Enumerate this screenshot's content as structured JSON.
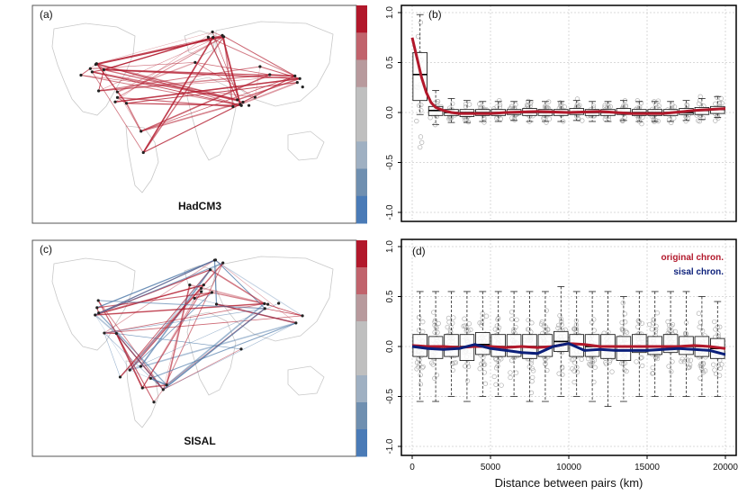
{
  "colors": {
    "red": "#b2182b",
    "navy": "#0b1f7a",
    "link_pos": "#b2182b",
    "link_neg": "#4c78a8",
    "box": "#222222",
    "point": "#b0b0b0"
  },
  "colorbar": [
    "#b2182b",
    "#c1636c",
    "#b89a9d",
    "#bfbfbf",
    "#bfbfbf",
    "#9fb0c2",
    "#6f8fb0",
    "#4a7bb7"
  ],
  "panels": {
    "a": {
      "label": "(a)",
      "title": "HadCM3"
    },
    "b": {
      "label": "(b)"
    },
    "c": {
      "label": "(c)",
      "title": "SISAL"
    },
    "d": {
      "label": "(d)"
    }
  },
  "x_axis_label": "Distance between pairs (km)",
  "chart_data": [
    {
      "panel": "b",
      "type": "box",
      "xlim": [
        0,
        20000
      ],
      "ylim": [
        -1,
        1
      ],
      "xticks": [
        0,
        5000,
        10000,
        15000,
        20000
      ],
      "yticks": [
        -1.0,
        -0.5,
        0.0,
        0.5,
        1.0
      ],
      "ytick_labels": [
        "-1.0",
        "-0.5",
        "0.0",
        "0.5",
        "1.0"
      ],
      "grid": true,
      "bins_x": [
        0,
        1000,
        1500,
        2000,
        2500,
        3000,
        3500,
        4000,
        4500,
        5000,
        5500,
        6000,
        6500,
        7000,
        7500,
        8000,
        8500,
        9000,
        9500,
        10000,
        10500,
        11000,
        11500,
        12000,
        12500,
        13000,
        13500,
        14000,
        14500,
        15000,
        15500,
        16000,
        16500,
        17000,
        17500,
        18000,
        18500,
        19000,
        19500,
        20000
      ],
      "median": [
        0.38,
        0.1,
        0.03,
        0.01,
        0.0,
        0.0,
        0.0,
        0.0,
        0.0,
        0.0,
        0.0,
        0.0,
        0.0,
        0.0,
        0.0,
        0.0,
        0.0,
        0.0,
        0.0,
        0.0,
        0.0,
        0.0,
        0.0,
        0.0,
        0.0,
        0.0,
        0.0,
        0.0,
        0.0,
        0.0,
        0.0,
        0.0,
        0.0,
        0.0,
        0.0,
        0.0,
        0.0,
        0.0,
        0.0,
        0.0
      ],
      "q1": [
        0.22,
        0.02,
        -0.02,
        -0.03,
        -0.03,
        -0.03,
        -0.03,
        -0.03,
        -0.03,
        -0.03,
        -0.03,
        -0.03,
        -0.03,
        -0.03,
        -0.03,
        -0.03,
        -0.03,
        -0.03,
        -0.03,
        -0.03,
        -0.03,
        -0.03,
        -0.03,
        -0.03,
        -0.03,
        -0.03,
        -0.03,
        -0.03,
        -0.03,
        -0.03,
        -0.03,
        -0.03,
        -0.03,
        -0.03,
        -0.03,
        -0.03,
        -0.03,
        -0.03,
        -0.03,
        -0.03
      ],
      "q3": [
        0.6,
        0.18,
        0.07,
        0.04,
        0.04,
        0.04,
        0.04,
        0.04,
        0.04,
        0.04,
        0.04,
        0.04,
        0.04,
        0.04,
        0.04,
        0.04,
        0.04,
        0.04,
        0.04,
        0.04,
        0.04,
        0.04,
        0.04,
        0.04,
        0.04,
        0.04,
        0.04,
        0.04,
        0.04,
        0.04,
        0.04,
        0.04,
        0.04,
        0.04,
        0.04,
        0.04,
        0.04,
        0.04,
        0.04,
        0.04
      ],
      "box_positions": [
        500,
        1500,
        2500,
        3500,
        4500,
        5500,
        6500,
        7500,
        8500,
        9500,
        10500,
        11500,
        12500,
        13500,
        14500,
        15500,
        16500,
        17500,
        18500,
        19500
      ],
      "box_median": [
        0.38,
        0.02,
        0.0,
        0.0,
        0.0,
        0.0,
        0.0,
        0.0,
        0.0,
        0.0,
        0.0,
        0.0,
        0.0,
        0.0,
        0.0,
        0.0,
        0.0,
        0.0,
        0.02,
        0.03
      ],
      "box_q1": [
        0.12,
        -0.03,
        -0.03,
        -0.04,
        -0.03,
        -0.03,
        -0.02,
        -0.03,
        -0.03,
        -0.03,
        -0.02,
        -0.03,
        -0.03,
        -0.02,
        -0.03,
        -0.03,
        -0.03,
        -0.02,
        -0.02,
        -0.01
      ],
      "box_q3": [
        0.6,
        0.06,
        0.03,
        0.03,
        0.03,
        0.03,
        0.03,
        0.04,
        0.03,
        0.03,
        0.04,
        0.03,
        0.03,
        0.04,
        0.03,
        0.03,
        0.03,
        0.04,
        0.05,
        0.06
      ],
      "box_low": [
        -0.02,
        -0.12,
        -0.1,
        -0.1,
        -0.09,
        -0.09,
        -0.08,
        -0.09,
        -0.09,
        -0.09,
        -0.08,
        -0.09,
        -0.09,
        -0.08,
        -0.09,
        -0.09,
        -0.09,
        -0.08,
        -0.07,
        -0.05
      ],
      "box_high": [
        0.98,
        0.22,
        0.14,
        0.12,
        0.11,
        0.11,
        0.11,
        0.12,
        0.11,
        0.11,
        0.12,
        0.11,
        0.11,
        0.12,
        0.11,
        0.11,
        0.11,
        0.12,
        0.14,
        0.16
      ],
      "smooth_x": [
        0,
        300,
        600,
        900,
        1200,
        1500,
        2000,
        2500,
        3000,
        4000,
        5000,
        6000,
        8000,
        10000,
        12000,
        14000,
        16000,
        18000,
        20000
      ],
      "smooth_y": [
        0.75,
        0.55,
        0.35,
        0.2,
        0.1,
        0.05,
        0.02,
        0.0,
        -0.01,
        -0.01,
        -0.01,
        0.0,
        0.01,
        0.0,
        0.01,
        -0.01,
        -0.01,
        0.02,
        0.04
      ]
    },
    {
      "panel": "d",
      "type": "box",
      "xlim": [
        0,
        20000
      ],
      "ylim": [
        -1,
        1
      ],
      "xticks": [
        0,
        5000,
        10000,
        15000,
        20000
      ],
      "xtick_labels": [
        "0",
        "5000",
        "10000",
        "15000",
        "20000"
      ],
      "yticks": [
        -1.0,
        -0.5,
        0.0,
        0.5,
        1.0
      ],
      "ytick_labels": [
        "-1.0",
        "-0.5",
        "0.0",
        "0.5",
        "1.0"
      ],
      "grid": true,
      "legend": [
        "original chron.",
        "sisal chron."
      ],
      "legend_position": "top-right",
      "box_positions": [
        500,
        1500,
        2500,
        3500,
        4500,
        5500,
        6500,
        7500,
        8500,
        9500,
        10500,
        11500,
        12500,
        13500,
        14500,
        15500,
        16500,
        17500,
        18500,
        19500
      ],
      "box_median": [
        0.0,
        0.0,
        0.0,
        0.0,
        0.02,
        0.0,
        0.0,
        0.0,
        0.0,
        0.05,
        0.02,
        0.0,
        0.0,
        0.0,
        0.0,
        0.0,
        0.0,
        0.0,
        0.0,
        -0.02
      ],
      "box_q1": [
        -0.1,
        -0.12,
        -0.1,
        -0.14,
        -0.08,
        -0.1,
        -0.1,
        -0.12,
        -0.1,
        -0.05,
        -0.1,
        -0.1,
        -0.12,
        -0.14,
        -0.06,
        -0.08,
        -0.06,
        -0.08,
        -0.1,
        -0.12
      ],
      "box_q3": [
        0.12,
        0.1,
        0.12,
        0.12,
        0.14,
        0.12,
        0.12,
        0.12,
        0.12,
        0.15,
        0.12,
        0.12,
        0.12,
        0.1,
        0.12,
        0.1,
        0.12,
        0.1,
        0.1,
        0.08
      ],
      "box_low": [
        -0.55,
        -0.55,
        -0.5,
        -0.55,
        -0.5,
        -0.5,
        -0.5,
        -0.55,
        -0.55,
        -0.5,
        -0.5,
        -0.55,
        -0.6,
        -0.55,
        -0.5,
        -0.5,
        -0.5,
        -0.5,
        -0.5,
        -0.5
      ],
      "box_high": [
        0.55,
        0.55,
        0.55,
        0.55,
        0.55,
        0.55,
        0.55,
        0.55,
        0.55,
        0.6,
        0.55,
        0.55,
        0.55,
        0.5,
        0.55,
        0.55,
        0.55,
        0.55,
        0.5,
        0.45
      ],
      "series": [
        {
          "name": "original chron.",
          "x": [
            0,
            1000,
            2000,
            3000,
            4000,
            5000,
            6000,
            7000,
            8000,
            9000,
            10000,
            11000,
            12000,
            13000,
            14000,
            15000,
            16000,
            17000,
            18000,
            19000,
            20000
          ],
          "y": [
            0.01,
            0.0,
            0.0,
            -0.01,
            0.0,
            0.0,
            -0.01,
            0.0,
            -0.01,
            0.0,
            0.03,
            0.02,
            0.0,
            0.0,
            0.0,
            0.0,
            0.0,
            0.0,
            0.01,
            0.0,
            -0.02
          ]
        },
        {
          "name": "sisal chron.",
          "x": [
            0,
            1000,
            2000,
            3000,
            4000,
            5000,
            6000,
            7000,
            8000,
            9000,
            10000,
            11000,
            12000,
            13000,
            14000,
            15000,
            16000,
            17000,
            18000,
            19000,
            20000
          ],
          "y": [
            0.0,
            -0.02,
            -0.03,
            -0.02,
            0.02,
            -0.02,
            -0.04,
            -0.06,
            -0.07,
            0.0,
            0.03,
            -0.04,
            -0.03,
            -0.04,
            -0.04,
            -0.04,
            -0.03,
            -0.02,
            -0.03,
            -0.04,
            -0.08
          ]
        }
      ]
    }
  ]
}
